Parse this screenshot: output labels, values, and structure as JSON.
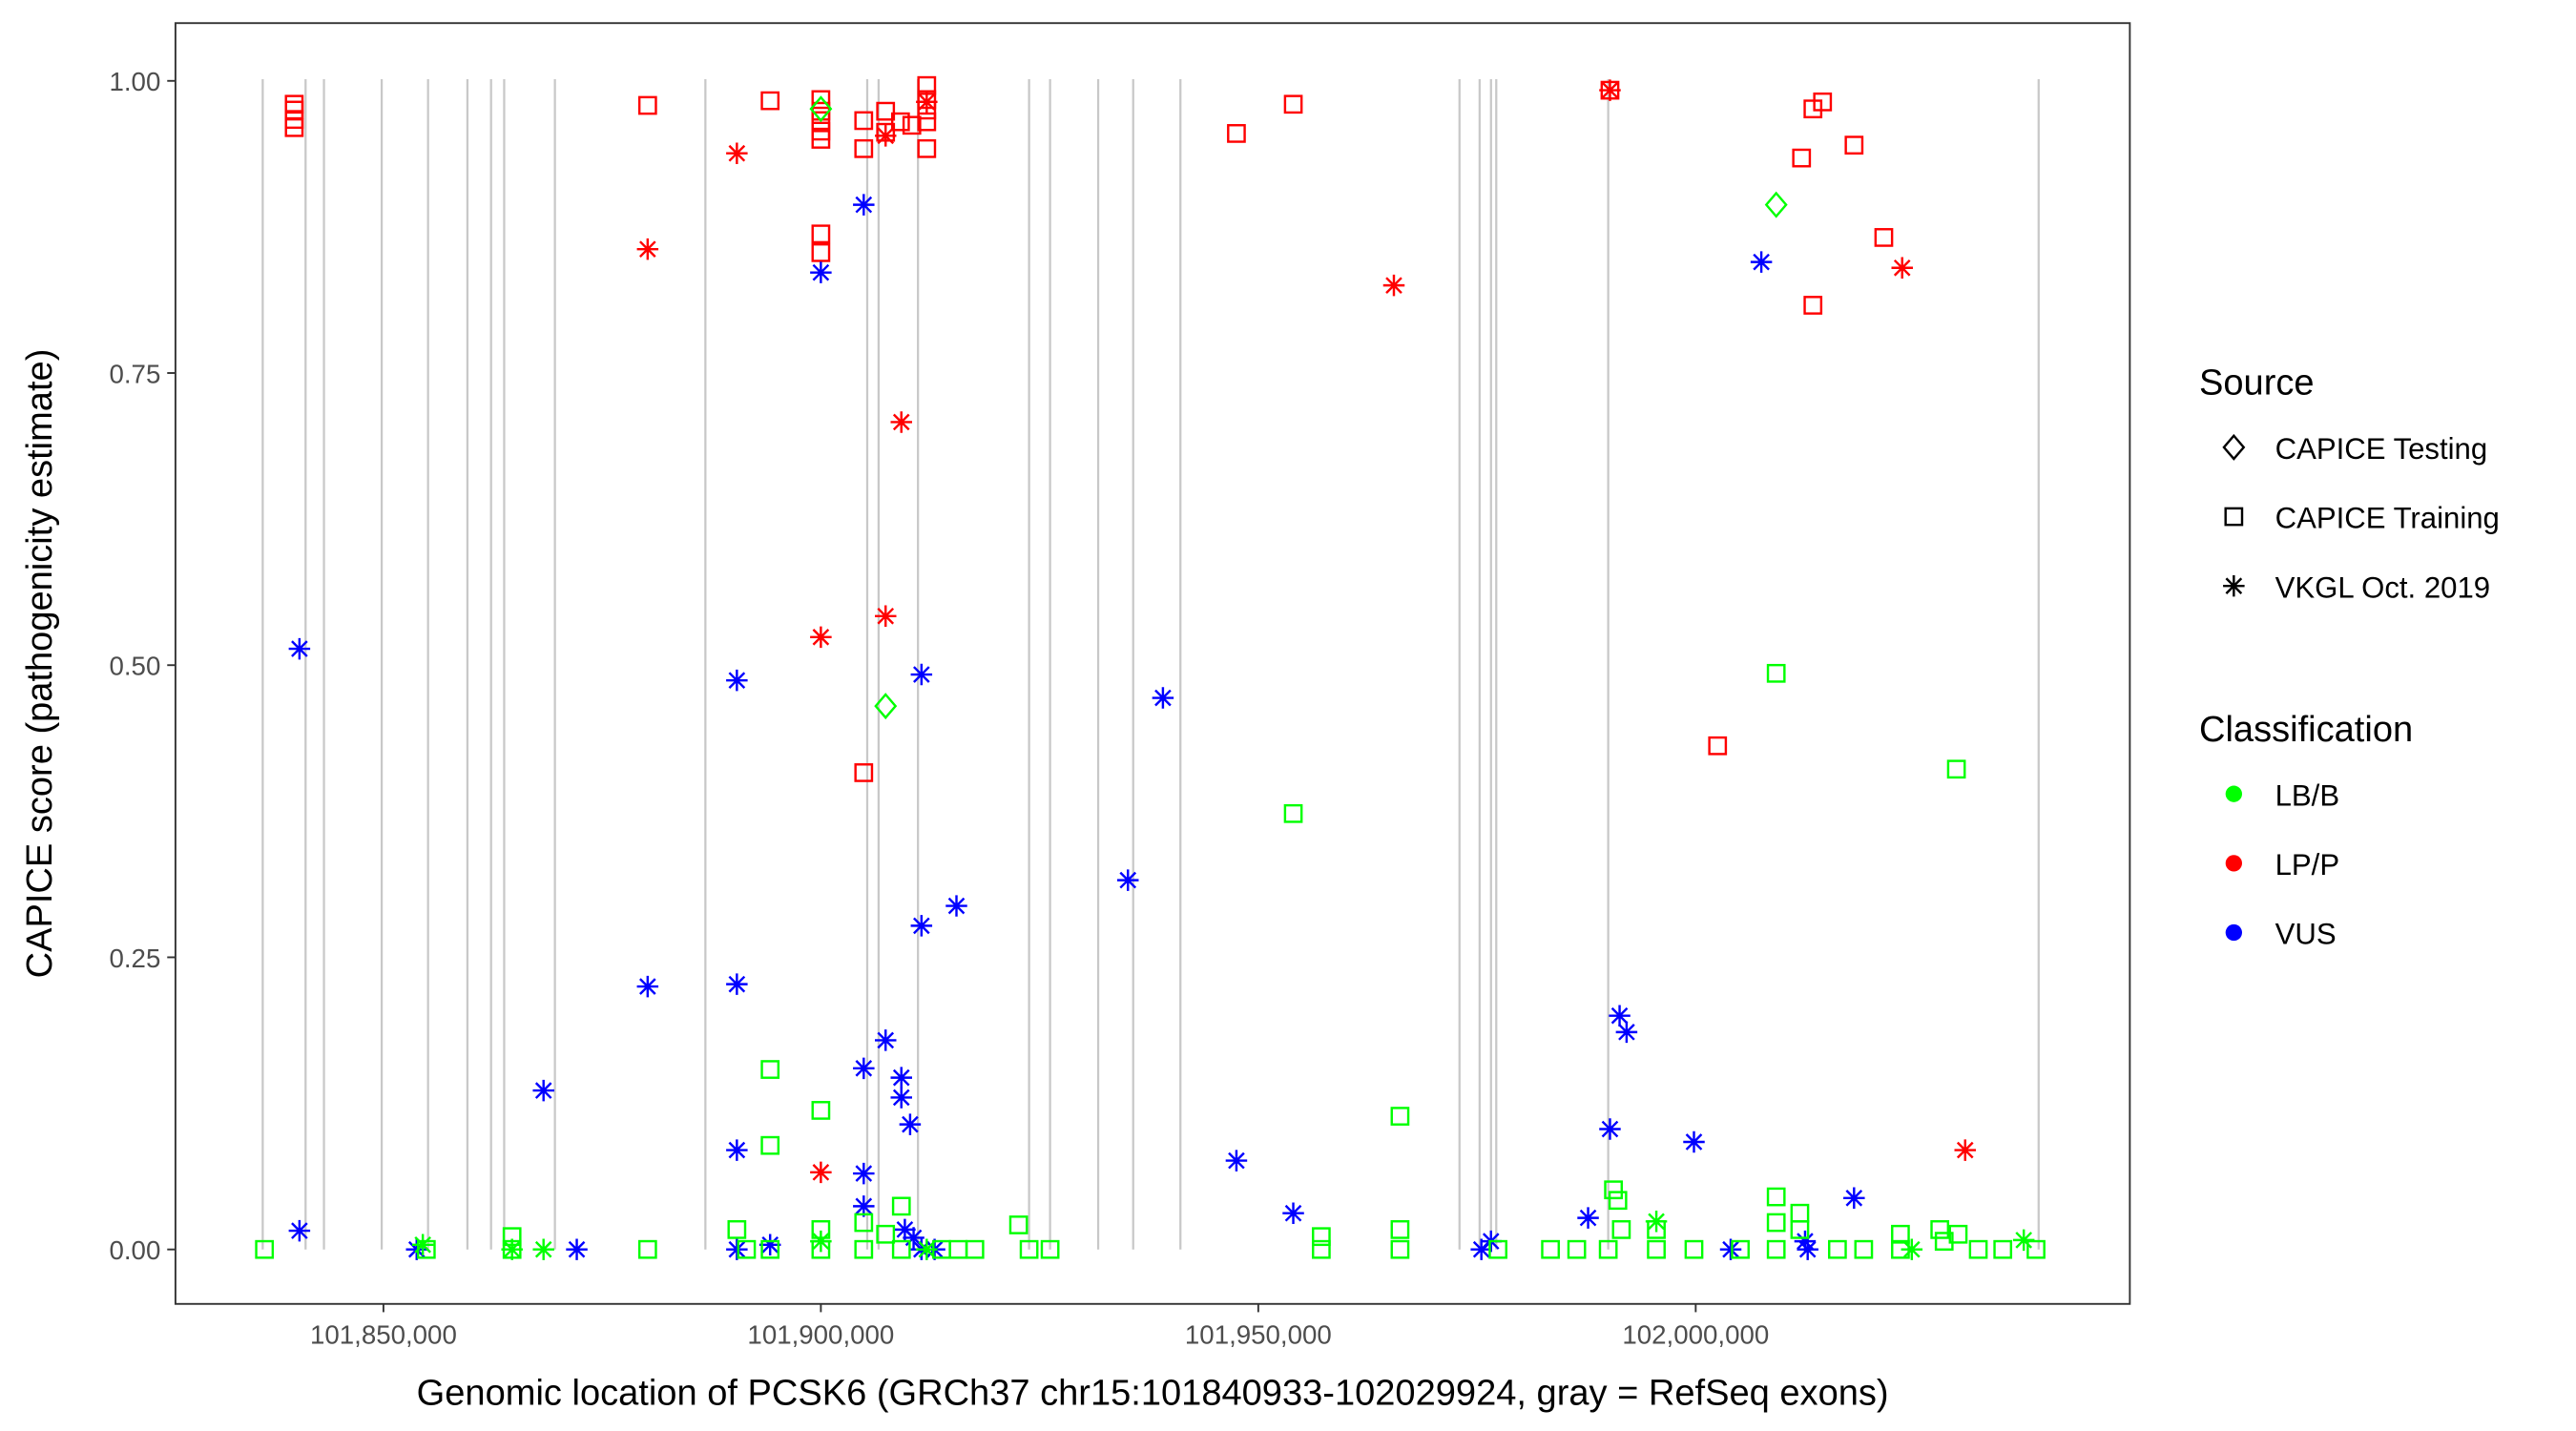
{
  "chart_data": {
    "type": "scatter",
    "title": "",
    "xlabel": "Genomic location of PCSK6 (GRCh37 chr15:101840933-102029924, gray = RefSeq exons)",
    "ylabel": "CAPICE score (pathogenicity estimate)",
    "xlim": [
      101832000,
      102036000
    ],
    "ylim": [
      -0.045,
      1.05
    ],
    "x_ticks": [
      101850000,
      101900000,
      101950000,
      102000000
    ],
    "x_tick_labels": [
      "101,850,000",
      "101,900,000",
      "101,950,000",
      "102,000,000"
    ],
    "y_ticks": [
      0,
      0.25,
      0.5,
      0.75,
      1.0
    ],
    "y_tick_labels": [
      "0.00",
      "0.25",
      "0.50",
      "0.75",
      "1.00"
    ],
    "grid": false,
    "exon_lines": [
      101836200,
      101841100,
      101843200,
      101849800,
      101855100,
      101859600,
      101862300,
      101863800,
      101869600,
      101886800,
      101905300,
      101906600,
      101911100,
      101923800,
      101926200,
      101931700,
      101935700,
      101941100,
      101973000,
      101975300,
      101976600,
      101977200,
      101990000,
      102039200
    ],
    "exon_color": "#c8c8c8",
    "legend": {
      "placement": "right",
      "source_title": "Source",
      "sources": [
        {
          "label": "CAPICE Testing",
          "shape": "diamond"
        },
        {
          "label": "CAPICE Training",
          "shape": "square"
        },
        {
          "label": "VKGL Oct. 2019",
          "shape": "asterisk"
        }
      ],
      "class_title": "Classification",
      "classes": [
        {
          "label": "LB/B",
          "color": "#00FF00"
        },
        {
          "label": "LP/P",
          "color": "#FF0000"
        },
        {
          "label": "VUS",
          "color": "#0000FF"
        }
      ]
    },
    "point_fields": [
      "x",
      "score",
      "classification",
      "source"
    ],
    "points": [
      [
        101839800,
        0.98,
        "LP/P",
        "CAPICE Training"
      ],
      [
        101839800,
        0.975,
        "LP/P",
        "CAPICE Training"
      ],
      [
        101839800,
        0.967,
        "LP/P",
        "CAPICE Training"
      ],
      [
        101839800,
        0.96,
        "LP/P",
        "CAPICE Training"
      ],
      [
        101880200,
        0.979,
        "LP/P",
        "CAPICE Training"
      ],
      [
        101894200,
        0.983,
        "LP/P",
        "CAPICE Training"
      ],
      [
        101900000,
        0.984,
        "LP/P",
        "CAPICE Training"
      ],
      [
        101900000,
        0.974,
        "LP/P",
        "CAPICE Training"
      ],
      [
        101900000,
        0.966,
        "LP/P",
        "CAPICE Training"
      ],
      [
        101900000,
        0.957,
        "LP/P",
        "CAPICE Training"
      ],
      [
        101900000,
        0.95,
        "LP/P",
        "CAPICE Training"
      ],
      [
        101900000,
        0.869,
        "LP/P",
        "CAPICE Training"
      ],
      [
        101900000,
        0.853,
        "LP/P",
        "CAPICE Training"
      ],
      [
        101904900,
        0.966,
        "LP/P",
        "CAPICE Training"
      ],
      [
        101904900,
        0.942,
        "LP/P",
        "CAPICE Training"
      ],
      [
        101904900,
        0.408,
        "LP/P",
        "CAPICE Training"
      ],
      [
        101907400,
        0.974,
        "LP/P",
        "CAPICE Training"
      ],
      [
        101907400,
        0.956,
        "LP/P",
        "CAPICE Training"
      ],
      [
        101909100,
        0.965,
        "LP/P",
        "CAPICE Training"
      ],
      [
        101910400,
        0.962,
        "LP/P",
        "CAPICE Training"
      ],
      [
        101912100,
        0.996,
        "LP/P",
        "CAPICE Training"
      ],
      [
        101912100,
        0.984,
        "LP/P",
        "CAPICE Training"
      ],
      [
        101912100,
        0.975,
        "LP/P",
        "CAPICE Training"
      ],
      [
        101912100,
        0.965,
        "LP/P",
        "CAPICE Training"
      ],
      [
        101912100,
        0.942,
        "LP/P",
        "CAPICE Training"
      ],
      [
        101947500,
        0.955,
        "LP/P",
        "CAPICE Training"
      ],
      [
        101954000,
        0.98,
        "LP/P",
        "CAPICE Training"
      ],
      [
        101990200,
        0.992,
        "LP/P",
        "CAPICE Training"
      ],
      [
        102002500,
        0.431,
        "LP/P",
        "CAPICE Training"
      ],
      [
        102012100,
        0.934,
        "LP/P",
        "CAPICE Training"
      ],
      [
        102013400,
        0.976,
        "LP/P",
        "CAPICE Training"
      ],
      [
        102014500,
        0.982,
        "LP/P",
        "CAPICE Training"
      ],
      [
        102013400,
        0.808,
        "LP/P",
        "CAPICE Training"
      ],
      [
        102018100,
        0.945,
        "LP/P",
        "CAPICE Training"
      ],
      [
        102021500,
        0.866,
        "LP/P",
        "CAPICE Training"
      ],
      [
        101880200,
        0.856,
        "LP/P",
        "VKGL Oct. 2019"
      ],
      [
        101890400,
        0.938,
        "LP/P",
        "VKGL Oct. 2019"
      ],
      [
        101900000,
        0.524,
        "LP/P",
        "VKGL Oct. 2019"
      ],
      [
        101900000,
        0.066,
        "LP/P",
        "VKGL Oct. 2019"
      ],
      [
        101907400,
        0.953,
        "LP/P",
        "VKGL Oct. 2019"
      ],
      [
        101907400,
        0.542,
        "LP/P",
        "VKGL Oct. 2019"
      ],
      [
        101909200,
        0.708,
        "LP/P",
        "VKGL Oct. 2019"
      ],
      [
        101912100,
        0.982,
        "LP/P",
        "VKGL Oct. 2019"
      ],
      [
        101965500,
        0.825,
        "LP/P",
        "VKGL Oct. 2019"
      ],
      [
        101990200,
        0.992,
        "LP/P",
        "VKGL Oct. 2019"
      ],
      [
        102023600,
        0.84,
        "LP/P",
        "VKGL Oct. 2019"
      ],
      [
        102030800,
        0.085,
        "LP/P",
        "VKGL Oct. 2019"
      ],
      [
        101840400,
        0.514,
        "VUS",
        "VKGL Oct. 2019"
      ],
      [
        101840400,
        0.016,
        "VUS",
        "VKGL Oct. 2019"
      ],
      [
        101853800,
        0.0,
        "VUS",
        "VKGL Oct. 2019"
      ],
      [
        101868300,
        0.136,
        "VUS",
        "VKGL Oct. 2019"
      ],
      [
        101872100,
        0.0,
        "VUS",
        "VKGL Oct. 2019"
      ],
      [
        101880200,
        0.225,
        "VUS",
        "VKGL Oct. 2019"
      ],
      [
        101890400,
        0.487,
        "VUS",
        "VKGL Oct. 2019"
      ],
      [
        101890400,
        0.227,
        "VUS",
        "VKGL Oct. 2019"
      ],
      [
        101890400,
        0.085,
        "VUS",
        "VKGL Oct. 2019"
      ],
      [
        101890400,
        0.0,
        "VUS",
        "VKGL Oct. 2019"
      ],
      [
        101894200,
        0.004,
        "VUS",
        "VKGL Oct. 2019"
      ],
      [
        101900000,
        0.836,
        "VUS",
        "VKGL Oct. 2019"
      ],
      [
        101904900,
        0.894,
        "VUS",
        "VKGL Oct. 2019"
      ],
      [
        101904900,
        0.155,
        "VUS",
        "VKGL Oct. 2019"
      ],
      [
        101904900,
        0.065,
        "VUS",
        "VKGL Oct. 2019"
      ],
      [
        101904900,
        0.037,
        "VUS",
        "VKGL Oct. 2019"
      ],
      [
        101907400,
        0.179,
        "VUS",
        "VKGL Oct. 2019"
      ],
      [
        101909200,
        0.147,
        "VUS",
        "VKGL Oct. 2019"
      ],
      [
        101909200,
        0.13,
        "VUS",
        "VKGL Oct. 2019"
      ],
      [
        101910200,
        0.107,
        "VUS",
        "VKGL Oct. 2019"
      ],
      [
        101911500,
        0.492,
        "VUS",
        "VKGL Oct. 2019"
      ],
      [
        101911500,
        0.277,
        "VUS",
        "VKGL Oct. 2019"
      ],
      [
        101909600,
        0.017,
        "VUS",
        "VKGL Oct. 2019"
      ],
      [
        101910600,
        0.01,
        "VUS",
        "VKGL Oct. 2019"
      ],
      [
        101911500,
        0.0,
        "VUS",
        "VKGL Oct. 2019"
      ],
      [
        101913000,
        0.0,
        "VUS",
        "VKGL Oct. 2019"
      ],
      [
        101915500,
        0.294,
        "VUS",
        "VKGL Oct. 2019"
      ],
      [
        101935100,
        0.316,
        "VUS",
        "VKGL Oct. 2019"
      ],
      [
        101939100,
        0.472,
        "VUS",
        "VKGL Oct. 2019"
      ],
      [
        101947500,
        0.076,
        "VUS",
        "VKGL Oct. 2019"
      ],
      [
        101954000,
        0.031,
        "VUS",
        "VKGL Oct. 2019"
      ],
      [
        101975500,
        0.0,
        "VUS",
        "VKGL Oct. 2019"
      ],
      [
        101976600,
        0.007,
        "VUS",
        "VKGL Oct. 2019"
      ],
      [
        101987700,
        0.027,
        "VUS",
        "VKGL Oct. 2019"
      ],
      [
        101990200,
        0.103,
        "VUS",
        "VKGL Oct. 2019"
      ],
      [
        101991300,
        0.2,
        "VUS",
        "VKGL Oct. 2019"
      ],
      [
        101992100,
        0.186,
        "VUS",
        "VKGL Oct. 2019"
      ],
      [
        101999800,
        0.092,
        "VUS",
        "VKGL Oct. 2019"
      ],
      [
        102004000,
        0.0,
        "VUS",
        "VKGL Oct. 2019"
      ],
      [
        102007500,
        0.845,
        "VUS",
        "VKGL Oct. 2019"
      ],
      [
        102012500,
        0.007,
        "VUS",
        "VKGL Oct. 2019"
      ],
      [
        102012800,
        0.0,
        "VUS",
        "VKGL Oct. 2019"
      ],
      [
        102018100,
        0.044,
        "VUS",
        "VKGL Oct. 2019"
      ],
      [
        101836400,
        0.0,
        "LB/B",
        "CAPICE Training"
      ],
      [
        101854900,
        0.0,
        "LB/B",
        "CAPICE Training"
      ],
      [
        101864700,
        0.011,
        "LB/B",
        "CAPICE Training"
      ],
      [
        101864700,
        0.0,
        "LB/B",
        "CAPICE Training"
      ],
      [
        101880200,
        0.0,
        "LB/B",
        "CAPICE Training"
      ],
      [
        101890400,
        0.017,
        "LB/B",
        "CAPICE Training"
      ],
      [
        101891500,
        0.0,
        "LB/B",
        "CAPICE Training"
      ],
      [
        101894200,
        0.154,
        "LB/B",
        "CAPICE Training"
      ],
      [
        101894200,
        0.089,
        "LB/B",
        "CAPICE Training"
      ],
      [
        101894200,
        0.0,
        "LB/B",
        "CAPICE Training"
      ],
      [
        101900000,
        0.119,
        "LB/B",
        "CAPICE Training"
      ],
      [
        101900000,
        0.017,
        "LB/B",
        "CAPICE Training"
      ],
      [
        101900000,
        0.0,
        "LB/B",
        "CAPICE Training"
      ],
      [
        101904900,
        0.023,
        "LB/B",
        "CAPICE Training"
      ],
      [
        101904900,
        0.0,
        "LB/B",
        "CAPICE Training"
      ],
      [
        101909200,
        0.037,
        "LB/B",
        "CAPICE Training"
      ],
      [
        101907400,
        0.013,
        "LB/B",
        "CAPICE Training"
      ],
      [
        101909200,
        0.0,
        "LB/B",
        "CAPICE Training"
      ],
      [
        101913800,
        0.0,
        "LB/B",
        "CAPICE Training"
      ],
      [
        101915700,
        0.0,
        "LB/B",
        "CAPICE Training"
      ],
      [
        101917600,
        0.0,
        "LB/B",
        "CAPICE Training"
      ],
      [
        101922600,
        0.021,
        "LB/B",
        "CAPICE Training"
      ],
      [
        101923800,
        0.0,
        "LB/B",
        "CAPICE Training"
      ],
      [
        101926200,
        0.0,
        "LB/B",
        "CAPICE Training"
      ],
      [
        101954000,
        0.373,
        "LB/B",
        "CAPICE Training"
      ],
      [
        101957200,
        0.011,
        "LB/B",
        "CAPICE Training"
      ],
      [
        101957200,
        0.0,
        "LB/B",
        "CAPICE Training"
      ],
      [
        101966200,
        0.114,
        "LB/B",
        "CAPICE Training"
      ],
      [
        101966200,
        0.017,
        "LB/B",
        "CAPICE Training"
      ],
      [
        101966200,
        0.0,
        "LB/B",
        "CAPICE Training"
      ],
      [
        101977400,
        0.0,
        "LB/B",
        "CAPICE Training"
      ],
      [
        101983400,
        0.0,
        "LB/B",
        "CAPICE Training"
      ],
      [
        101986400,
        0.0,
        "LB/B",
        "CAPICE Training"
      ],
      [
        101990600,
        0.051,
        "LB/B",
        "CAPICE Training"
      ],
      [
        101991100,
        0.042,
        "LB/B",
        "CAPICE Training"
      ],
      [
        101991500,
        0.017,
        "LB/B",
        "CAPICE Training"
      ],
      [
        101990000,
        0.0,
        "LB/B",
        "CAPICE Training"
      ],
      [
        101995500,
        0.017,
        "LB/B",
        "CAPICE Training"
      ],
      [
        101995500,
        0.0,
        "LB/B",
        "CAPICE Training"
      ],
      [
        101999800,
        0.0,
        "LB/B",
        "CAPICE Training"
      ],
      [
        102005100,
        0.0,
        "LB/B",
        "CAPICE Training"
      ],
      [
        102009200,
        0.493,
        "LB/B",
        "CAPICE Training"
      ],
      [
        102009200,
        0.045,
        "LB/B",
        "CAPICE Training"
      ],
      [
        102009200,
        0.023,
        "LB/B",
        "CAPICE Training"
      ],
      [
        102009200,
        0.0,
        "LB/B",
        "CAPICE Training"
      ],
      [
        102011900,
        0.031,
        "LB/B",
        "CAPICE Training"
      ],
      [
        102011900,
        0.017,
        "LB/B",
        "CAPICE Training"
      ],
      [
        102016200,
        0.0,
        "LB/B",
        "CAPICE Training"
      ],
      [
        102019200,
        0.0,
        "LB/B",
        "CAPICE Training"
      ],
      [
        102023400,
        0.013,
        "LB/B",
        "CAPICE Training"
      ],
      [
        102023400,
        0.0,
        "LB/B",
        "CAPICE Training"
      ],
      [
        102027900,
        0.017,
        "LB/B",
        "CAPICE Training"
      ],
      [
        102028400,
        0.007,
        "LB/B",
        "CAPICE Training"
      ],
      [
        102029800,
        0.411,
        "LB/B",
        "CAPICE Training"
      ],
      [
        102030000,
        0.013,
        "LB/B",
        "CAPICE Training"
      ],
      [
        102032300,
        0.0,
        "LB/B",
        "CAPICE Training"
      ],
      [
        102035100,
        0.0,
        "LB/B",
        "CAPICE Training"
      ],
      [
        102038900,
        0.0,
        "LB/B",
        "CAPICE Training"
      ],
      [
        101900000,
        0.976,
        "LB/B",
        "CAPICE Testing"
      ],
      [
        101907400,
        0.465,
        "LB/B",
        "CAPICE Testing"
      ],
      [
        102009200,
        0.894,
        "LB/B",
        "CAPICE Testing"
      ],
      [
        101854500,
        0.004,
        "LB/B",
        "VKGL Oct. 2019"
      ],
      [
        101864700,
        0.0,
        "LB/B",
        "VKGL Oct. 2019"
      ],
      [
        101868300,
        0.0,
        "LB/B",
        "VKGL Oct. 2019"
      ],
      [
        101900000,
        0.007,
        "LB/B",
        "VKGL Oct. 2019"
      ],
      [
        101912100,
        0.0,
        "LB/B",
        "VKGL Oct. 2019"
      ],
      [
        101995500,
        0.024,
        "LB/B",
        "VKGL Oct. 2019"
      ],
      [
        102024700,
        0.0,
        "LB/B",
        "VKGL Oct. 2019"
      ],
      [
        102037500,
        0.008,
        "LB/B",
        "VKGL Oct. 2019"
      ]
    ]
  }
}
